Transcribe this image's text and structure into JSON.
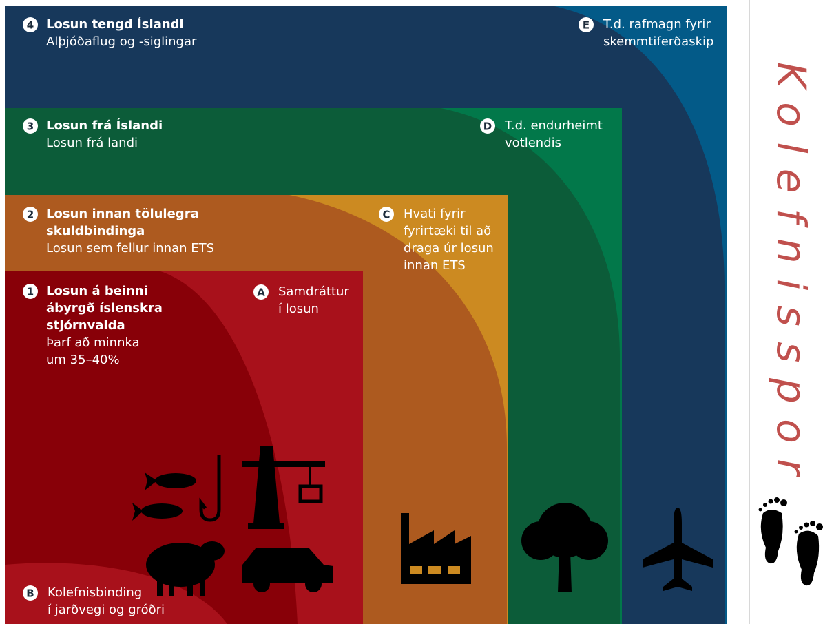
{
  "levels": [
    {
      "number": "4",
      "title": [
        "Losun tengd Íslandi"
      ],
      "subtitle": [
        "Alþjóðaflug og -siglingar"
      ]
    },
    {
      "number": "3",
      "title": [
        "Losun frá Íslandi"
      ],
      "subtitle": [
        "Losun frá landi"
      ]
    },
    {
      "number": "2",
      "title": [
        "Losun innan tölulegra",
        "skuldbindinga"
      ],
      "subtitle": [
        "Losun sem fellur innan ETS"
      ]
    },
    {
      "number": "1",
      "title": [
        "Losun á beinni",
        "ábyrgð íslenskra",
        "stjórnvalda"
      ],
      "subtitle": [
        "Þarf að minnka",
        "um 35–40%"
      ]
    }
  ],
  "notes": [
    {
      "letter": "A",
      "lines": [
        "Samdráttur",
        "í losun"
      ]
    },
    {
      "letter": "B",
      "lines": [
        "Kolefnisbinding",
        "í jarðvegi og gróðri"
      ]
    },
    {
      "letter": "C",
      "lines": [
        "Hvati fyrir",
        "fyrirtæki til að",
        "draga úr losun",
        "innan ETS"
      ]
    },
    {
      "letter": "D",
      "lines": [
        "T.d. endurheimt",
        "votlendis"
      ]
    },
    {
      "letter": "E",
      "lines": [
        "T.d. rafmagn fyrir",
        "skemmtiferðaskip"
      ]
    }
  ],
  "side_title": "Kolefnisspor"
}
